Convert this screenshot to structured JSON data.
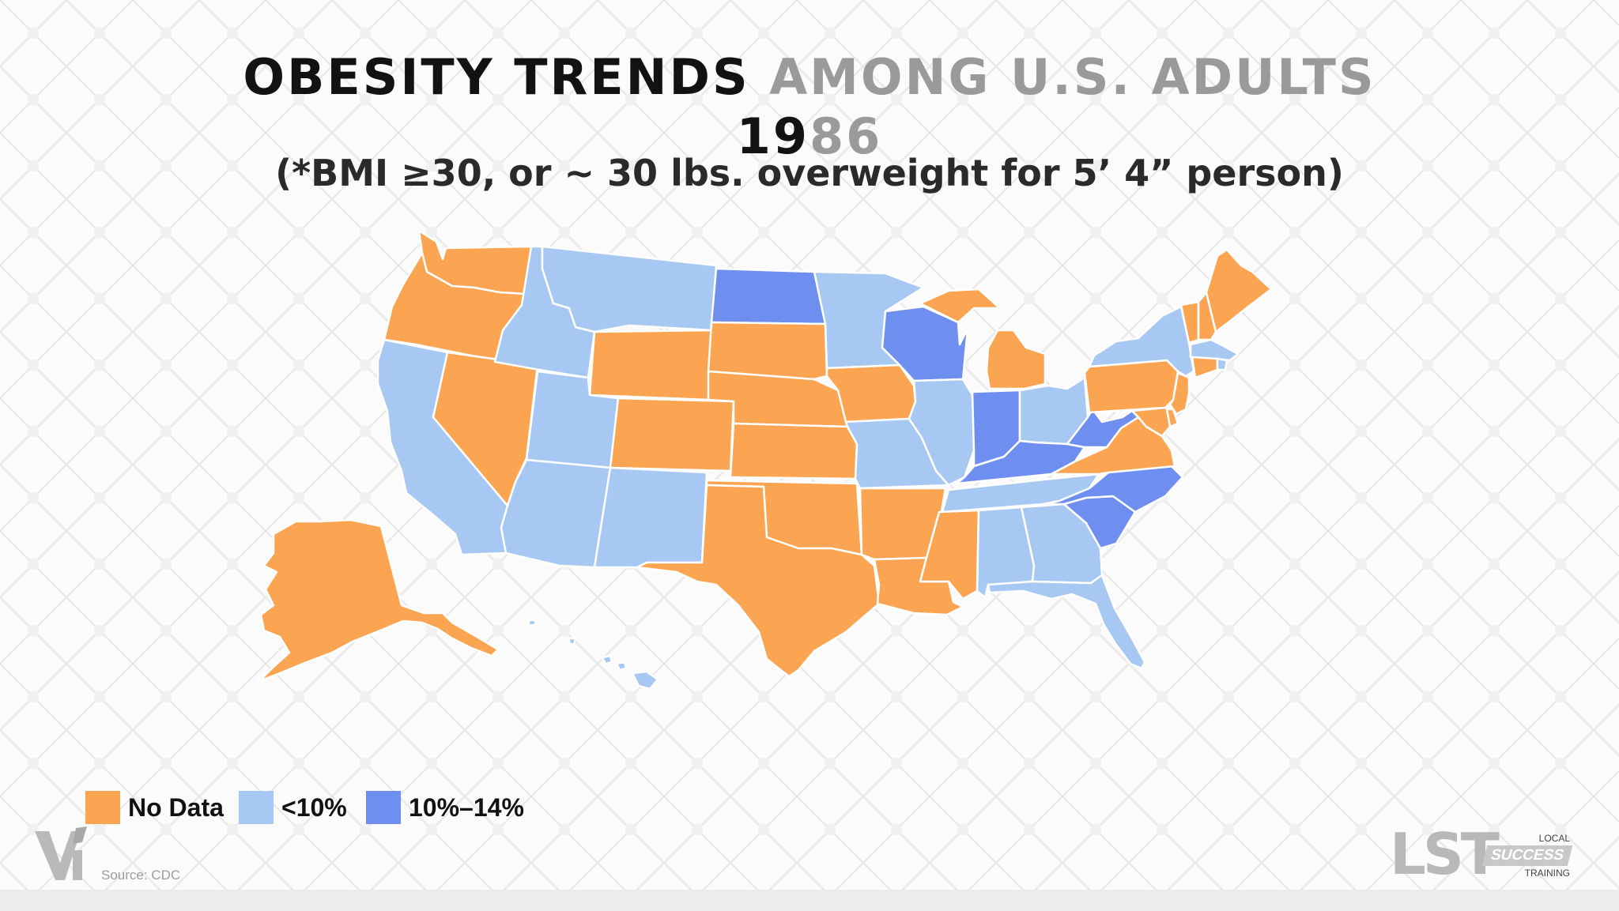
{
  "title": {
    "part1": "OBESITY TRENDS ",
    "part2": "AMONG U.S. ADULTS",
    "year_part1": "19",
    "year_part2": "86"
  },
  "subtitle": "(*BMI ≥30, or ~ 30 lbs. overweight for 5’ 4” person)",
  "colors": {
    "no_data": "#fba552",
    "lt10": "#a8c8f4",
    "p10_14": "#6f8ff0"
  },
  "legend": [
    {
      "label": "No Data",
      "color": "#fba552"
    },
    {
      "label": "<10%",
      "color": "#a8c8f4"
    },
    {
      "label": "10%–14%",
      "color": "#6f8ff0"
    }
  ],
  "source": "Source: CDC",
  "logo": {
    "letters": "LST",
    "local": "LOCAL",
    "success": "SUCCESS",
    "training": "TRAINING"
  },
  "states": {
    "WA": "no_data",
    "OR": "no_data",
    "CA": "lt10",
    "NV": "no_data",
    "ID": "lt10",
    "MT": "lt10",
    "WY": "no_data",
    "UT": "lt10",
    "AZ": "lt10",
    "CO": "no_data",
    "NM": "lt10",
    "ND": "p10_14",
    "SD": "no_data",
    "NE": "no_data",
    "KS": "no_data",
    "OK": "no_data",
    "TX": "no_data",
    "MN": "lt10",
    "IA": "no_data",
    "MO": "lt10",
    "AR": "no_data",
    "LA": "no_data",
    "WI": "p10_14",
    "IL": "lt10",
    "MI": "no_data",
    "IN": "p10_14",
    "OH": "lt10",
    "KY": "p10_14",
    "TN": "lt10",
    "MS": "no_data",
    "AL": "lt10",
    "GA": "lt10",
    "FL": "lt10",
    "SC": "p10_14",
    "NC": "p10_14",
    "VA": "no_data",
    "WV": "p10_14",
    "PA": "no_data",
    "NY": "lt10",
    "VT": "no_data",
    "NH": "no_data",
    "ME": "no_data",
    "MA": "lt10",
    "RI": "lt10",
    "CT": "no_data",
    "NJ": "no_data",
    "DE": "no_data",
    "MD": "no_data",
    "AK": "no_data",
    "HI": "lt10"
  }
}
